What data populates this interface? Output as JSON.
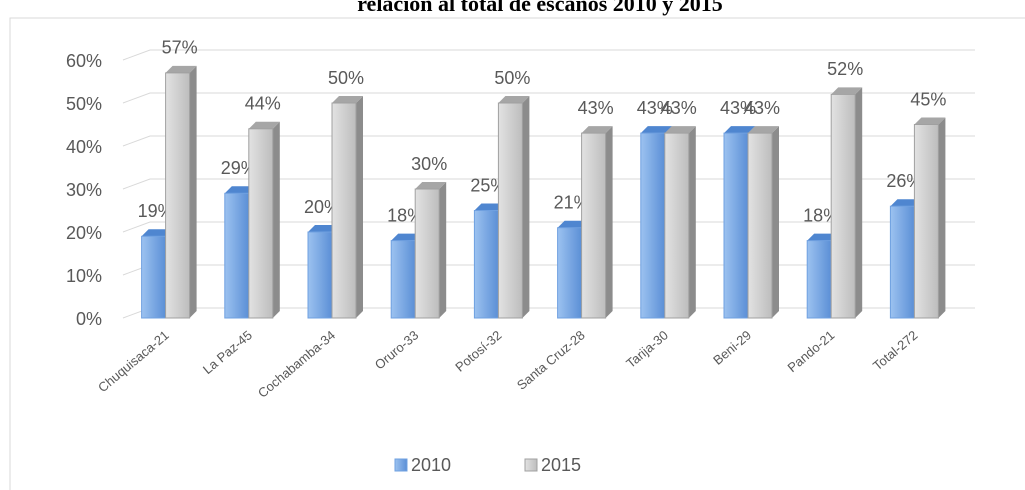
{
  "chart_data": {
    "type": "bar3d",
    "title": "relación al total de escaños 2010 y 2015",
    "categories": [
      "Chuquisaca-21",
      "La Paz-45",
      "Cochabamba-34",
      "Oruro-33",
      "Potosí-32",
      "Santa Cruz-28",
      "Tarija-30",
      "Beni-29",
      "Pando-21",
      "Total-272"
    ],
    "series": [
      {
        "name": "2010",
        "color": "#6fa0e0",
        "values": [
          19,
          29,
          20,
          18,
          25,
          21,
          43,
          43,
          18,
          26
        ],
        "value_labels": [
          "19%",
          "29%",
          "20%",
          "18%",
          "25%",
          "21%",
          "43%",
          "43%",
          "18%",
          "26%"
        ]
      },
      {
        "name": "2015",
        "color": "#c8c8c8",
        "values": [
          57,
          44,
          50,
          30,
          50,
          43,
          43,
          43,
          52,
          45
        ],
        "value_labels": [
          "57%",
          "44%",
          "50%",
          "30%",
          "50%",
          "43%",
          "43%",
          "43%",
          "52%",
          "45%"
        ]
      }
    ],
    "ylim": [
      0,
      60
    ],
    "yticks": [
      {
        "value": 0,
        "label": "0%"
      },
      {
        "value": 10,
        "label": "10%"
      },
      {
        "value": 20,
        "label": "20%"
      },
      {
        "value": 30,
        "label": "30%"
      },
      {
        "value": 40,
        "label": "40%"
      },
      {
        "value": 50,
        "label": "50%"
      },
      {
        "value": 60,
        "label": "60%"
      }
    ],
    "grid": true,
    "legend": "bottom"
  }
}
